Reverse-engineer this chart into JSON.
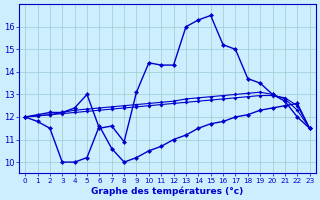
{
  "xlabel": "Graphe des températures (°c)",
  "hours": [
    0,
    1,
    2,
    3,
    4,
    5,
    6,
    7,
    8,
    9,
    10,
    11,
    12,
    13,
    14,
    15,
    16,
    17,
    18,
    19,
    20,
    21,
    22,
    23
  ],
  "line_main": [
    12.0,
    12.1,
    12.2,
    12.2,
    12.4,
    13.0,
    11.5,
    11.6,
    10.9,
    13.1,
    14.4,
    14.3,
    14.3,
    16.0,
    16.3,
    16.5,
    15.2,
    15.0,
    13.7,
    13.5,
    13.0,
    12.7,
    12.0,
    11.5
  ],
  "line_min": [
    12.0,
    11.8,
    11.5,
    10.0,
    10.0,
    10.2,
    11.6,
    10.6,
    10.0,
    10.2,
    10.5,
    10.7,
    11.0,
    11.2,
    11.5,
    11.7,
    11.8,
    12.0,
    12.1,
    12.3,
    12.4,
    12.5,
    12.6,
    11.5
  ],
  "line_avg1": [
    12.0,
    12.05,
    12.1,
    12.2,
    12.3,
    12.35,
    12.4,
    12.45,
    12.5,
    12.55,
    12.6,
    12.65,
    12.7,
    12.8,
    12.85,
    12.9,
    12.95,
    13.0,
    13.05,
    13.1,
    13.0,
    12.8,
    12.3,
    11.5
  ],
  "line_avg2": [
    12.0,
    12.05,
    12.1,
    12.15,
    12.2,
    12.25,
    12.3,
    12.35,
    12.4,
    12.45,
    12.5,
    12.55,
    12.6,
    12.65,
    12.7,
    12.75,
    12.8,
    12.85,
    12.9,
    12.95,
    12.95,
    12.85,
    12.5,
    11.5
  ],
  "line_color": "#0000cd",
  "bg_color": "#cceeff",
  "grid_color": "#99cccc",
  "ylim": [
    9.5,
    17.0
  ],
  "xlim": [
    -0.5,
    23.5
  ],
  "yticks": [
    10,
    11,
    12,
    13,
    14,
    15,
    16
  ],
  "xticks": [
    0,
    1,
    2,
    3,
    4,
    5,
    6,
    7,
    8,
    9,
    10,
    11,
    12,
    13,
    14,
    15,
    16,
    17,
    18,
    19,
    20,
    21,
    22,
    23
  ]
}
